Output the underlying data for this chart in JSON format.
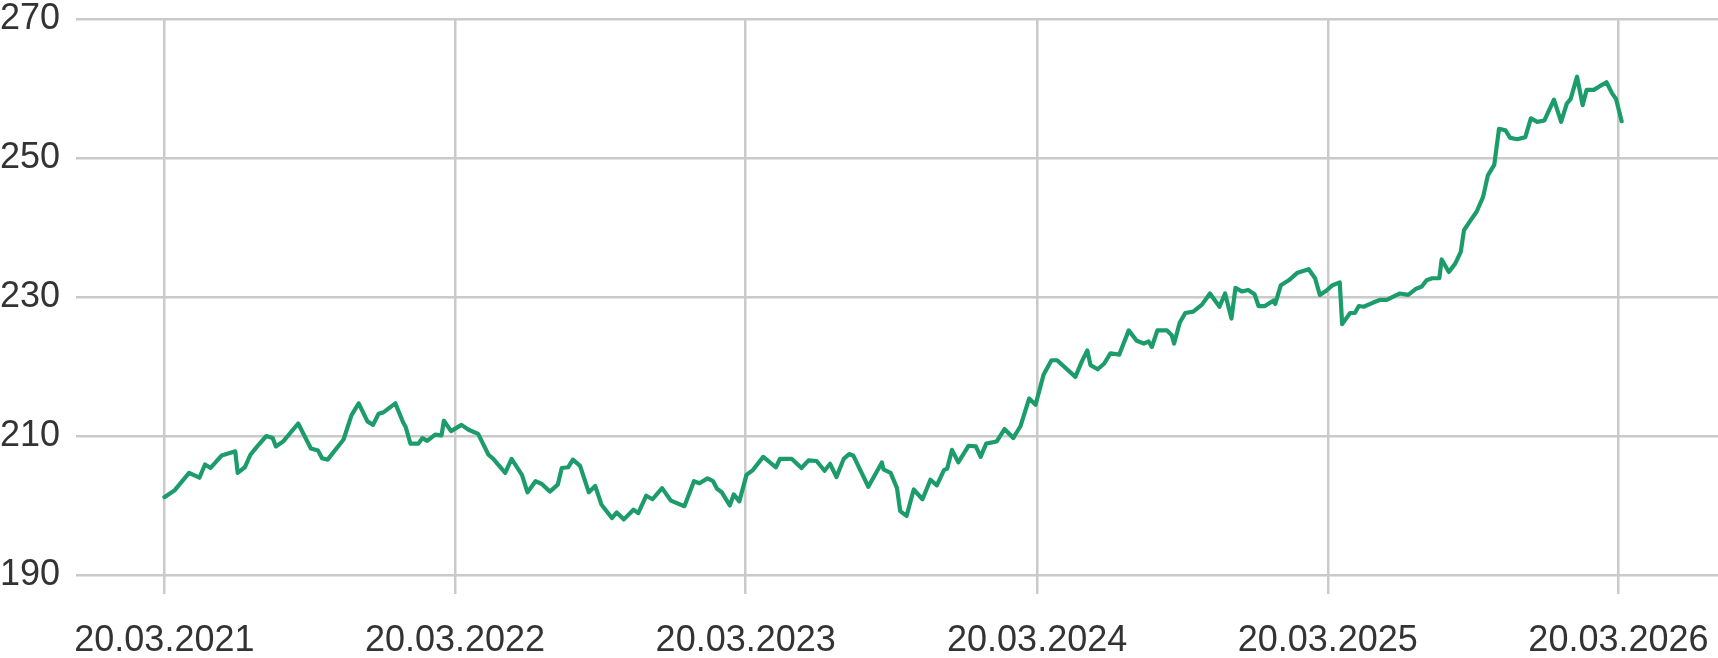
{
  "chart_data": {
    "type": "line",
    "color": "#1b9c6a",
    "x": [
      "2021-03-20",
      "2021-04-02",
      "2021-04-20",
      "2021-05-03",
      "2021-05-10",
      "2021-05-17",
      "2021-05-31",
      "2021-06-17",
      "2021-06-20",
      "2021-06-29",
      "2021-07-06",
      "2021-07-16",
      "2021-07-26",
      "2021-08-03",
      "2021-08-07",
      "2021-08-16",
      "2021-09-04",
      "2021-09-20",
      "2021-09-29",
      "2021-10-04",
      "2021-10-11",
      "2021-10-31",
      "2021-11-10",
      "2021-11-19",
      "2021-11-30",
      "2021-12-07",
      "2021-12-14",
      "2021-12-20",
      "2022-01-04",
      "2022-01-14",
      "2022-01-17",
      "2022-01-23",
      "2022-02-02",
      "2022-02-07",
      "2022-02-13",
      "2022-02-23",
      "2022-03-03",
      "2022-03-06",
      "2022-03-15",
      "2022-03-28",
      "2022-04-06",
      "2022-04-18",
      "2022-05-01",
      "2022-05-07",
      "2022-05-22",
      "2022-05-30",
      "2022-06-12",
      "2022-06-19",
      "2022-06-29",
      "2022-07-07",
      "2022-07-17",
      "2022-07-27",
      "2022-08-01",
      "2022-08-09",
      "2022-08-15",
      "2022-08-24",
      "2022-09-04",
      "2022-09-12",
      "2022-09-20",
      "2022-10-03",
      "2022-10-09",
      "2022-10-18",
      "2022-10-30",
      "2022-11-05",
      "2022-11-15",
      "2022-11-23",
      "2022-12-05",
      "2022-12-16",
      "2023-01-02",
      "2023-01-14",
      "2023-01-21",
      "2023-01-31",
      "2023-02-07",
      "2023-02-12",
      "2023-02-18",
      "2023-02-28",
      "2023-03-05",
      "2023-03-12",
      "2023-03-21",
      "2023-03-29",
      "2023-04-11",
      "2023-04-27",
      "2023-05-02",
      "2023-05-17",
      "2023-05-29",
      "2023-06-07",
      "2023-06-17",
      "2023-06-27",
      "2023-07-04",
      "2023-07-12",
      "2023-07-21",
      "2023-07-28",
      "2023-08-02",
      "2023-08-21",
      "2023-09-07",
      "2023-09-09",
      "2023-09-18",
      "2023-09-26",
      "2023-09-30",
      "2023-10-08",
      "2023-10-17",
      "2023-10-28",
      "2023-11-07",
      "2023-11-15",
      "2023-11-24",
      "2023-11-28",
      "2023-12-04",
      "2023-12-12",
      "2023-12-25",
      "2024-01-03",
      "2024-01-09",
      "2024-01-16",
      "2024-01-29",
      "2024-02-08",
      "2024-02-19",
      "2024-02-28",
      "2024-03-10",
      "2024-03-18",
      "2024-03-28",
      "2024-04-07",
      "2024-04-14",
      "2024-05-07",
      "2024-05-15",
      "2024-05-22",
      "2024-05-26",
      "2024-06-04",
      "2024-06-12",
      "2024-06-20",
      "2024-07-01",
      "2024-07-13",
      "2024-07-23",
      "2024-08-01",
      "2024-08-07",
      "2024-08-11",
      "2024-08-18",
      "2024-08-30",
      "2024-09-05",
      "2024-09-08",
      "2024-09-15",
      "2024-09-22",
      "2024-10-02",
      "2024-10-13",
      "2024-10-23",
      "2024-11-04",
      "2024-11-11",
      "2024-11-19",
      "2024-11-24",
      "2024-12-02",
      "2024-12-10",
      "2024-12-18",
      "2024-12-23",
      "2024-12-31",
      "2025-01-11",
      "2025-01-13",
      "2025-01-20",
      "2025-01-30",
      "2025-02-10",
      "2025-02-24",
      "2025-03-04",
      "2025-03-10",
      "2025-03-18",
      "2025-03-26",
      "2025-04-04",
      "2025-04-07",
      "2025-04-17",
      "2025-04-23",
      "2025-04-28",
      "2025-05-04",
      "2025-05-16",
      "2025-05-25",
      "2025-06-02",
      "2025-06-18",
      "2025-06-29",
      "2025-07-09",
      "2025-07-16",
      "2025-07-22",
      "2025-07-29",
      "2025-08-07",
      "2025-08-10",
      "2025-08-19",
      "2025-08-27",
      "2025-09-03",
      "2025-09-07",
      "2025-09-14",
      "2025-09-23",
      "2025-10-01",
      "2025-10-07",
      "2025-10-15",
      "2025-10-21",
      "2025-10-29",
      "2025-11-04",
      "2025-11-13",
      "2025-11-23",
      "2025-11-30",
      "2025-12-08",
      "2025-12-17",
      "2025-12-29",
      "2026-01-07",
      "2026-01-14",
      "2026-01-19",
      "2026-01-27",
      "2026-02-03",
      "2026-02-08",
      "2026-02-17",
      "2026-02-24",
      "2026-03-05",
      "2026-03-12",
      "2026-03-17",
      "2026-03-24"
    ],
    "values": [
      201.2,
      202.2,
      204.7,
      204.0,
      205.9,
      205.4,
      207.2,
      207.8,
      204.7,
      205.5,
      207.3,
      208.7,
      210.0,
      209.7,
      208.5,
      209.2,
      211.8,
      208.2,
      207.9,
      206.8,
      206.6,
      209.5,
      213.0,
      214.7,
      212.1,
      211.6,
      213.2,
      213.4,
      214.7,
      211.9,
      211.3,
      208.9,
      208.9,
      209.7,
      209.3,
      210.2,
      210.1,
      212.2,
      210.7,
      211.6,
      210.9,
      210.3,
      207.3,
      206.7,
      204.7,
      206.7,
      204.4,
      201.9,
      203.5,
      203.1,
      202.0,
      203.0,
      205.4,
      205.5,
      206.6,
      205.7,
      201.9,
      202.8,
      200.1,
      198.2,
      199.0,
      198.0,
      199.4,
      198.9,
      201.4,
      200.9,
      202.5,
      200.7,
      199.9,
      203.5,
      203.2,
      203.9,
      203.5,
      202.4,
      201.9,
      200.0,
      201.6,
      200.6,
      204.4,
      205.1,
      207.0,
      205.5,
      206.7,
      206.7,
      205.4,
      206.5,
      206.4,
      205.0,
      206.0,
      204.1,
      206.7,
      207.4,
      207.2,
      202.7,
      206.2,
      205.2,
      204.7,
      202.5,
      199.2,
      198.5,
      202.3,
      200.9,
      203.7,
      202.9,
      205.1,
      205.3,
      208.0,
      206.2,
      208.6,
      208.5,
      207.0,
      208.9,
      209.2,
      211.0,
      209.7,
      211.4,
      215.4,
      214.5,
      218.8,
      220.9,
      220.9,
      218.5,
      220.7,
      222.3,
      220.2,
      219.6,
      220.4,
      221.9,
      221.7,
      225.2,
      223.7,
      223.3,
      223.6,
      222.8,
      225.2,
      225.2,
      224.5,
      223.3,
      226.3,
      227.7,
      227.9,
      228.9,
      230.5,
      228.6,
      230.5,
      226.9,
      231.3,
      230.8,
      231.0,
      230.4,
      228.7,
      228.7,
      229.5,
      229.0,
      231.7,
      232.4,
      233.5,
      234.0,
      232.7,
      230.3,
      230.9,
      231.7,
      232.1,
      226.1,
      227.7,
      227.7,
      228.7,
      228.6,
      229.2,
      229.6,
      229.6,
      230.5,
      230.3,
      231.2,
      231.5,
      232.4,
      232.7,
      232.7,
      235.4,
      233.6,
      234.8,
      236.5,
      239.6,
      240.8,
      242.3,
      244.4,
      247.5,
      249.0,
      254.2,
      254.0,
      252.9,
      252.7,
      253.0,
      255.7,
      255.2,
      255.4,
      258.4,
      255.2,
      257.8,
      258.5,
      261.7,
      257.6,
      259.8,
      259.8,
      260.3,
      260.9,
      259.3,
      258.5,
      255.3
    ],
    "xlim": [
      "2020-11-29",
      "2026-07-23"
    ],
    "ylim": [
      190,
      270
    ],
    "xticks": [
      {
        "value": "2021-03-20",
        "label": "20.03.2021"
      },
      {
        "value": "2022-03-20",
        "label": "20.03.2022"
      },
      {
        "value": "2023-03-20",
        "label": "20.03.2023"
      },
      {
        "value": "2024-03-20",
        "label": "20.03.2024"
      },
      {
        "value": "2025-03-20",
        "label": "20.03.2025"
      },
      {
        "value": "2026-03-20",
        "label": "20.03.2026"
      }
    ],
    "yticks": [
      190,
      210,
      230,
      250,
      270
    ],
    "grid": true
  }
}
